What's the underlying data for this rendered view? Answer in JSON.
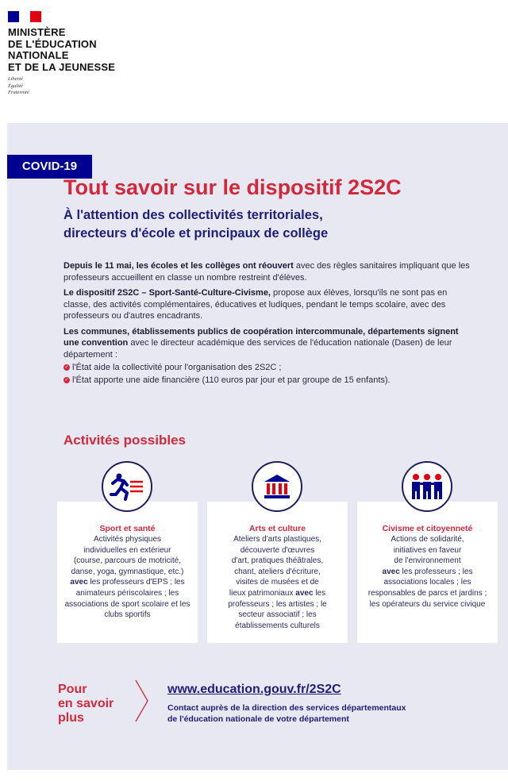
{
  "header": {
    "ministry_lines": [
      "MINISTÈRE",
      "DE L'ÉDUCATION",
      "NATIONALE",
      "ET DE LA JEUNESSE"
    ],
    "motto": [
      "Liberté",
      "Égalité",
      "Fraternité"
    ],
    "flag_colors": [
      "#000091",
      "#ffffff",
      "#e1000f"
    ]
  },
  "badge": "COVID-19",
  "title": "Tout savoir sur le dispositif 2S2C",
  "subtitle": [
    "À l'attention des collectivités territoriales,",
    "directeurs d'école et principaux de collège"
  ],
  "paragraphs": [
    {
      "bold": "Depuis le 11 mai, les écoles et les collèges ont réouvert",
      "text": " avec des règles sanitaires impliquant que les professeurs accueillent en classe un nombre restreint d'élèves."
    },
    {
      "bold": "Le dispositif 2S2C – Sport-Santé-Culture-Civisme,",
      "text": " propose aux élèves, lorsqu'ils ne sont pas en classe, des activités complémentaires, éducatives et ludiques, pendant le temps scolaire, avec des professeurs ou d'autres encadrants."
    },
    {
      "bold": "Les communes, établissements publics de coopération intercommunale, départements signent une convention",
      "text": " avec le directeur académique des services de l'éducation nationale (Dasen) de leur département :"
    }
  ],
  "bullets": [
    "l'État aide la collectivité pour l'organisation des 2S2C ;",
    "l'État apporte une aide financière (110 euros par jour et par groupe de 15 enfants)."
  ],
  "activities": {
    "title": "Activités possibles",
    "cards": [
      {
        "icon": "runner-icon",
        "title": "Sport et santé",
        "lines": [
          "Activités physiques",
          "individuelles en extérieur",
          "(course, parcours de motricité,",
          "danse, yoga, gymnastique, etc.)"
        ],
        "avec": "avec",
        "rest": " les professeurs d'EPS ; les animateurs périscolaires ; les associations de sport scolaire et les clubs sportifs"
      },
      {
        "icon": "museum-icon",
        "title": "Arts et culture",
        "lines": [
          "Ateliers d'arts plastiques,",
          "découverte d'œuvres",
          "d'art, pratiques théâtrales,",
          "chant, ateliers d'écriture,",
          "visites de musées et de",
          "lieux patrimoniaux"
        ],
        "avec": "avec",
        "rest": " les professeurs ; les artistes ; le secteur associatif ; les établissements culturels"
      },
      {
        "icon": "people-icon",
        "title": "Civisme et citoyenneté",
        "lines": [
          "Actions de solidarité,",
          "initiatives en faveur",
          "de l'environnement"
        ],
        "avec": "avec",
        "rest": " les professeurs ; les associations locales ; les responsables de parcs et jardins ; les opérateurs du service civique"
      }
    ]
  },
  "footer": {
    "more": [
      "Pour",
      "en savoir",
      "plus"
    ],
    "url": "www.education.gouv.fr/2S2C",
    "contact": [
      "Contact auprès de la direction des services départementaux",
      "de l'éducation nationale de votre département"
    ]
  },
  "colors": {
    "red": "#d1293c",
    "navy": "#1e1e78",
    "panel": "#e8e8f3"
  }
}
